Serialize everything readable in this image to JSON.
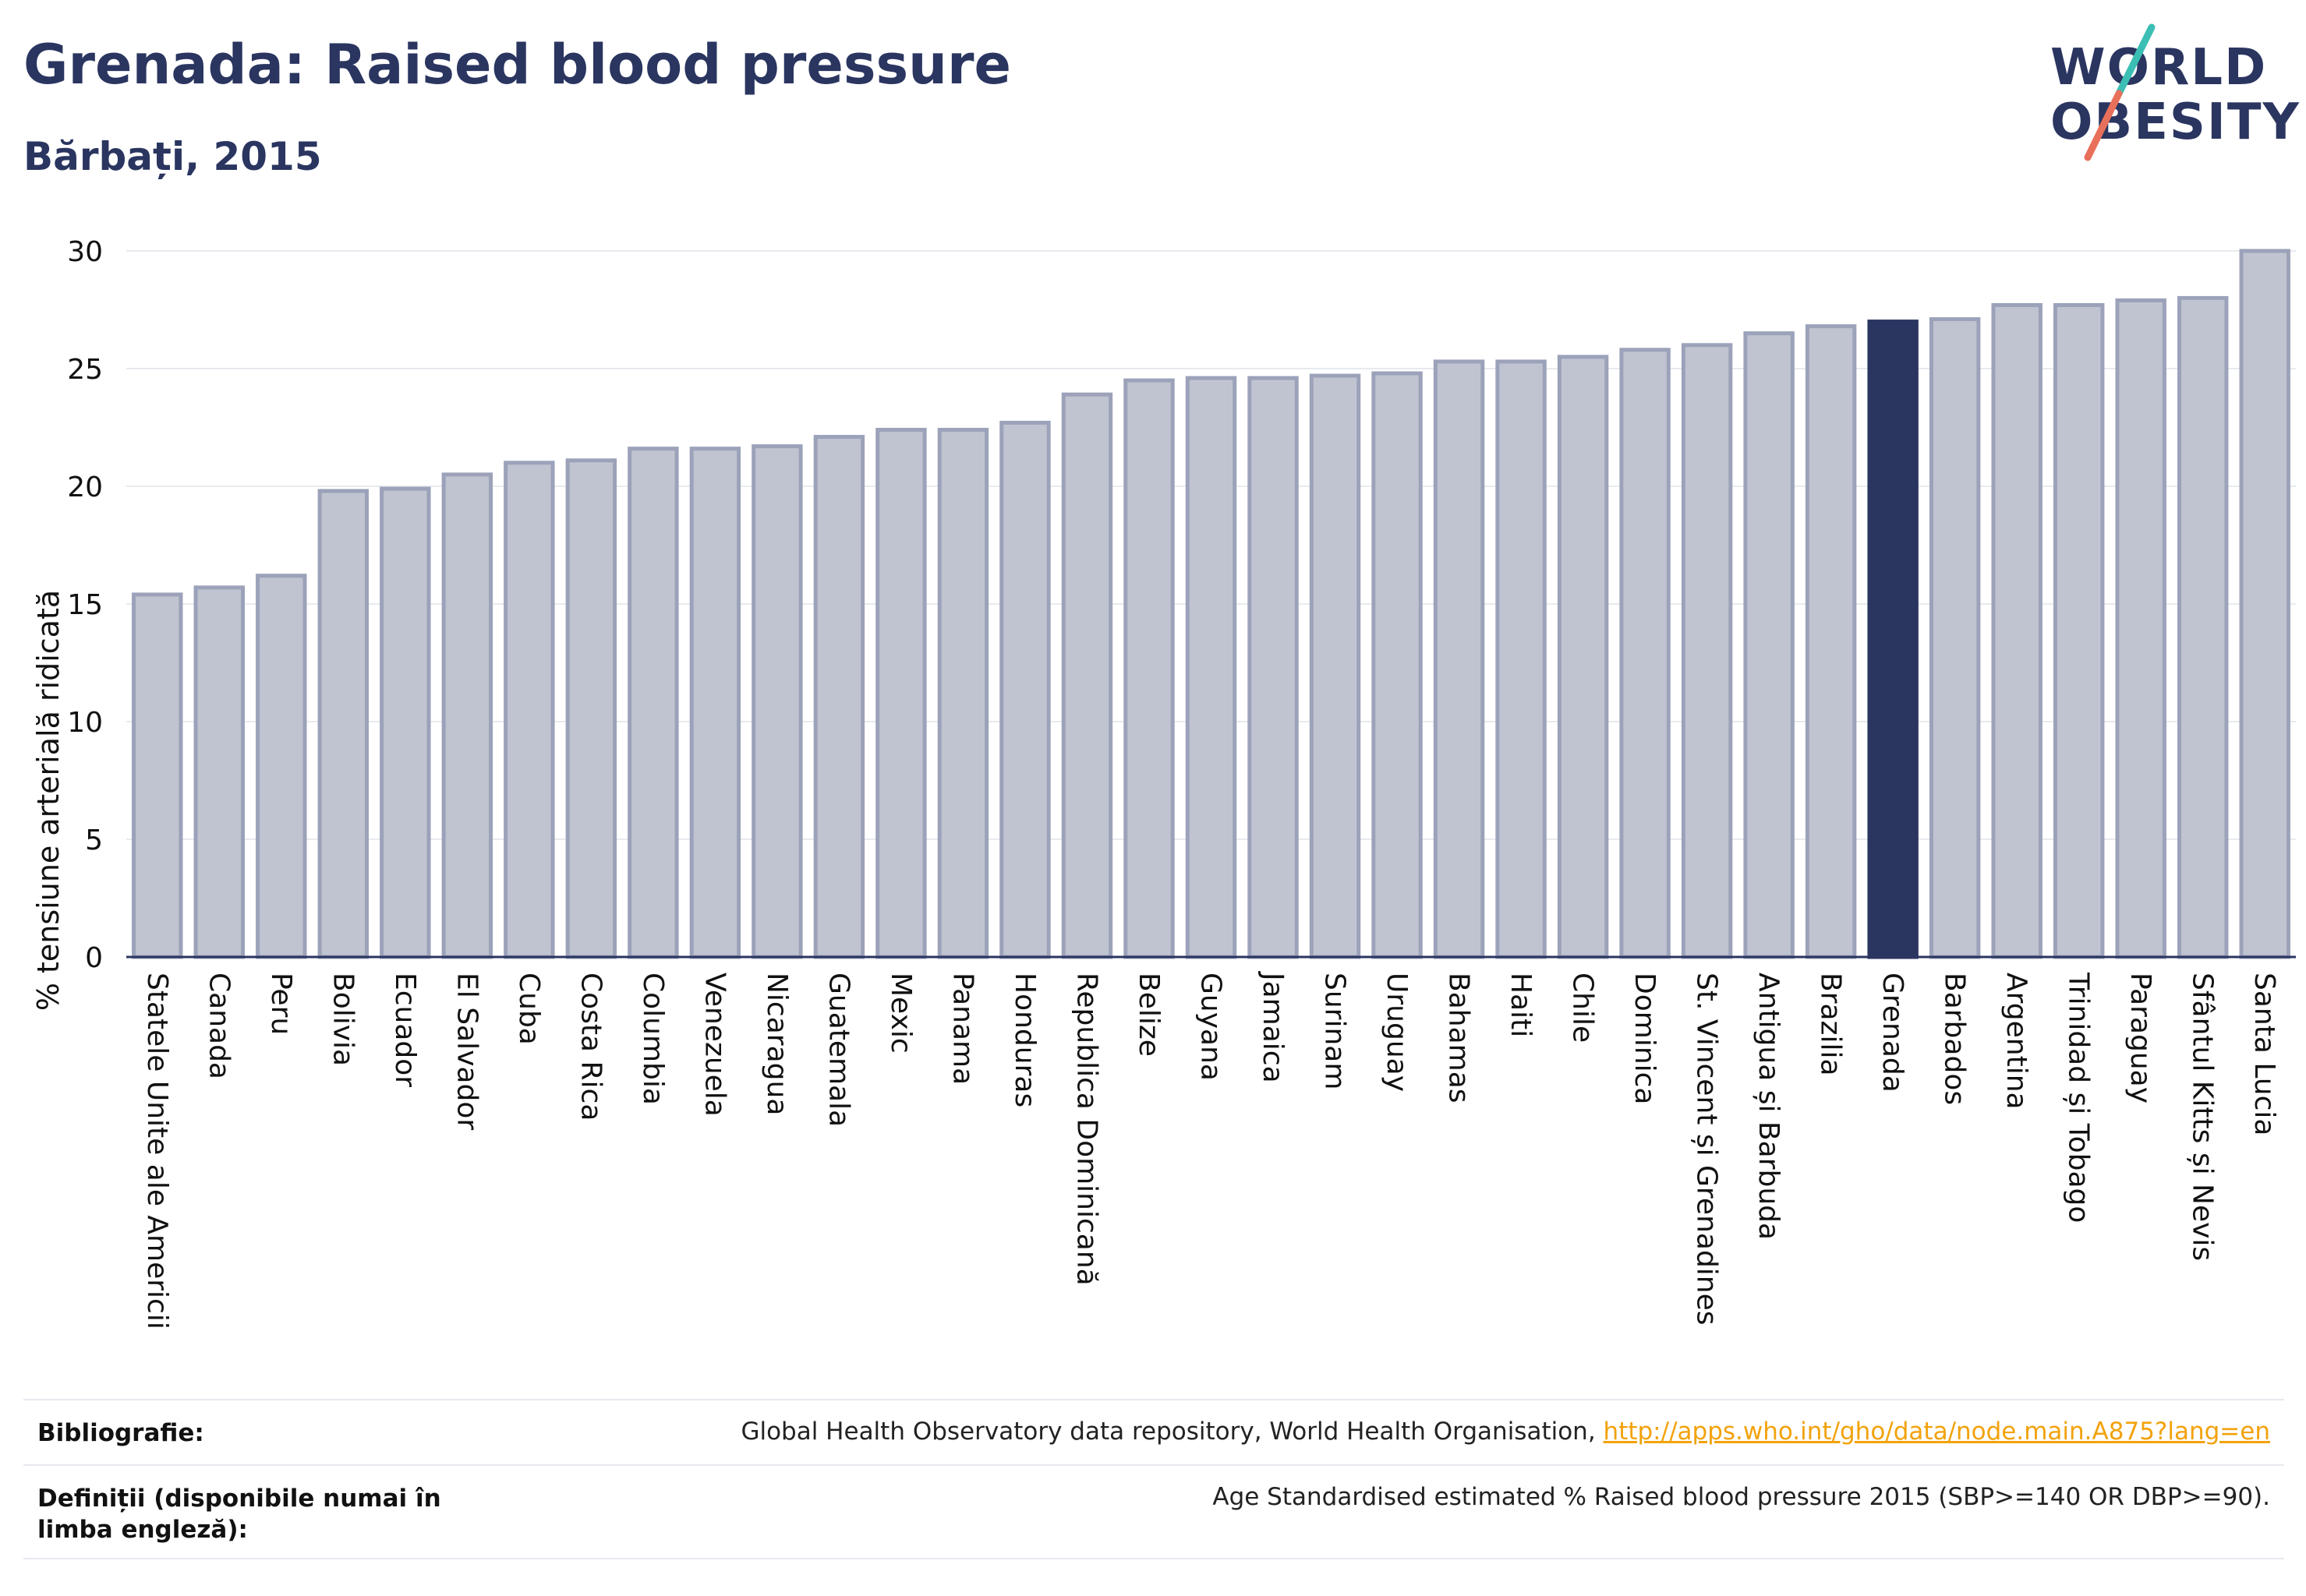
{
  "header": {
    "title": "Grenada: Raised blood pressure",
    "subtitle": "Bărbați, 2015"
  },
  "logo": {
    "line1": "WORLD",
    "line2": "OBESITY",
    "colors": {
      "text": "#2a3560",
      "slash_top": "#3bbfb4",
      "slash_bottom": "#e8705b"
    }
  },
  "colors": {
    "bar_fill": "#c0c4d1",
    "bar_stroke": "#9ba2b9",
    "highlight_fill": "#2a3560",
    "text": "#2a3560",
    "grid": "#e8eaef",
    "link": "#f2a20c"
  },
  "chart_data": {
    "type": "bar",
    "ylabel": "% tensiune arterială ridicată",
    "xlabel": "",
    "ylim": [
      0,
      30
    ],
    "yticks": [
      0,
      5,
      10,
      15,
      20,
      25,
      30
    ],
    "grid": true,
    "highlight": "Grenada",
    "categories": [
      "Statele Unite ale Americii",
      "Canada",
      "Peru",
      "Bolivia",
      "Ecuador",
      "El Salvador",
      "Cuba",
      "Costa Rica",
      "Columbia",
      "Venezuela",
      "Nicaragua",
      "Guatemala",
      "Mexic",
      "Panama",
      "Honduras",
      "Republica Dominicană",
      "Belize",
      "Guyana",
      "Jamaica",
      "Surinam",
      "Uruguay",
      "Bahamas",
      "Haiti",
      "Chile",
      "Dominica",
      "St. Vincent și Grenadines",
      "Antigua și Barbuda",
      "Brazilia",
      "Grenada",
      "Barbados",
      "Argentina",
      "Trinidad și Tobago",
      "Paraguay",
      "Sfântul Kitts și Nevis",
      "Santa Lucia"
    ],
    "values": [
      15.4,
      15.7,
      16.2,
      19.8,
      19.9,
      20.5,
      21.0,
      21.1,
      21.6,
      21.6,
      21.7,
      22.1,
      22.4,
      22.4,
      22.7,
      23.9,
      24.5,
      24.6,
      24.6,
      24.7,
      24.8,
      25.3,
      25.3,
      25.5,
      25.8,
      26.0,
      26.5,
      26.8,
      27.0,
      27.1,
      27.7,
      27.7,
      27.9,
      28.0,
      30.0
    ]
  },
  "footer": {
    "bibliography_label": "Bibliografie:",
    "bibliography_text": "Global Health Observatory data repository, World Health Organisation, ",
    "bibliography_link": "http://apps.who.int/gho/data/node.main.A875?lang=en",
    "definitions_label": "Definiții (disponibile numai în limba engleză):",
    "definitions_text": "Age Standardised estimated % Raised blood pressure 2015 (SBP>=140 OR DBP>=90)."
  }
}
